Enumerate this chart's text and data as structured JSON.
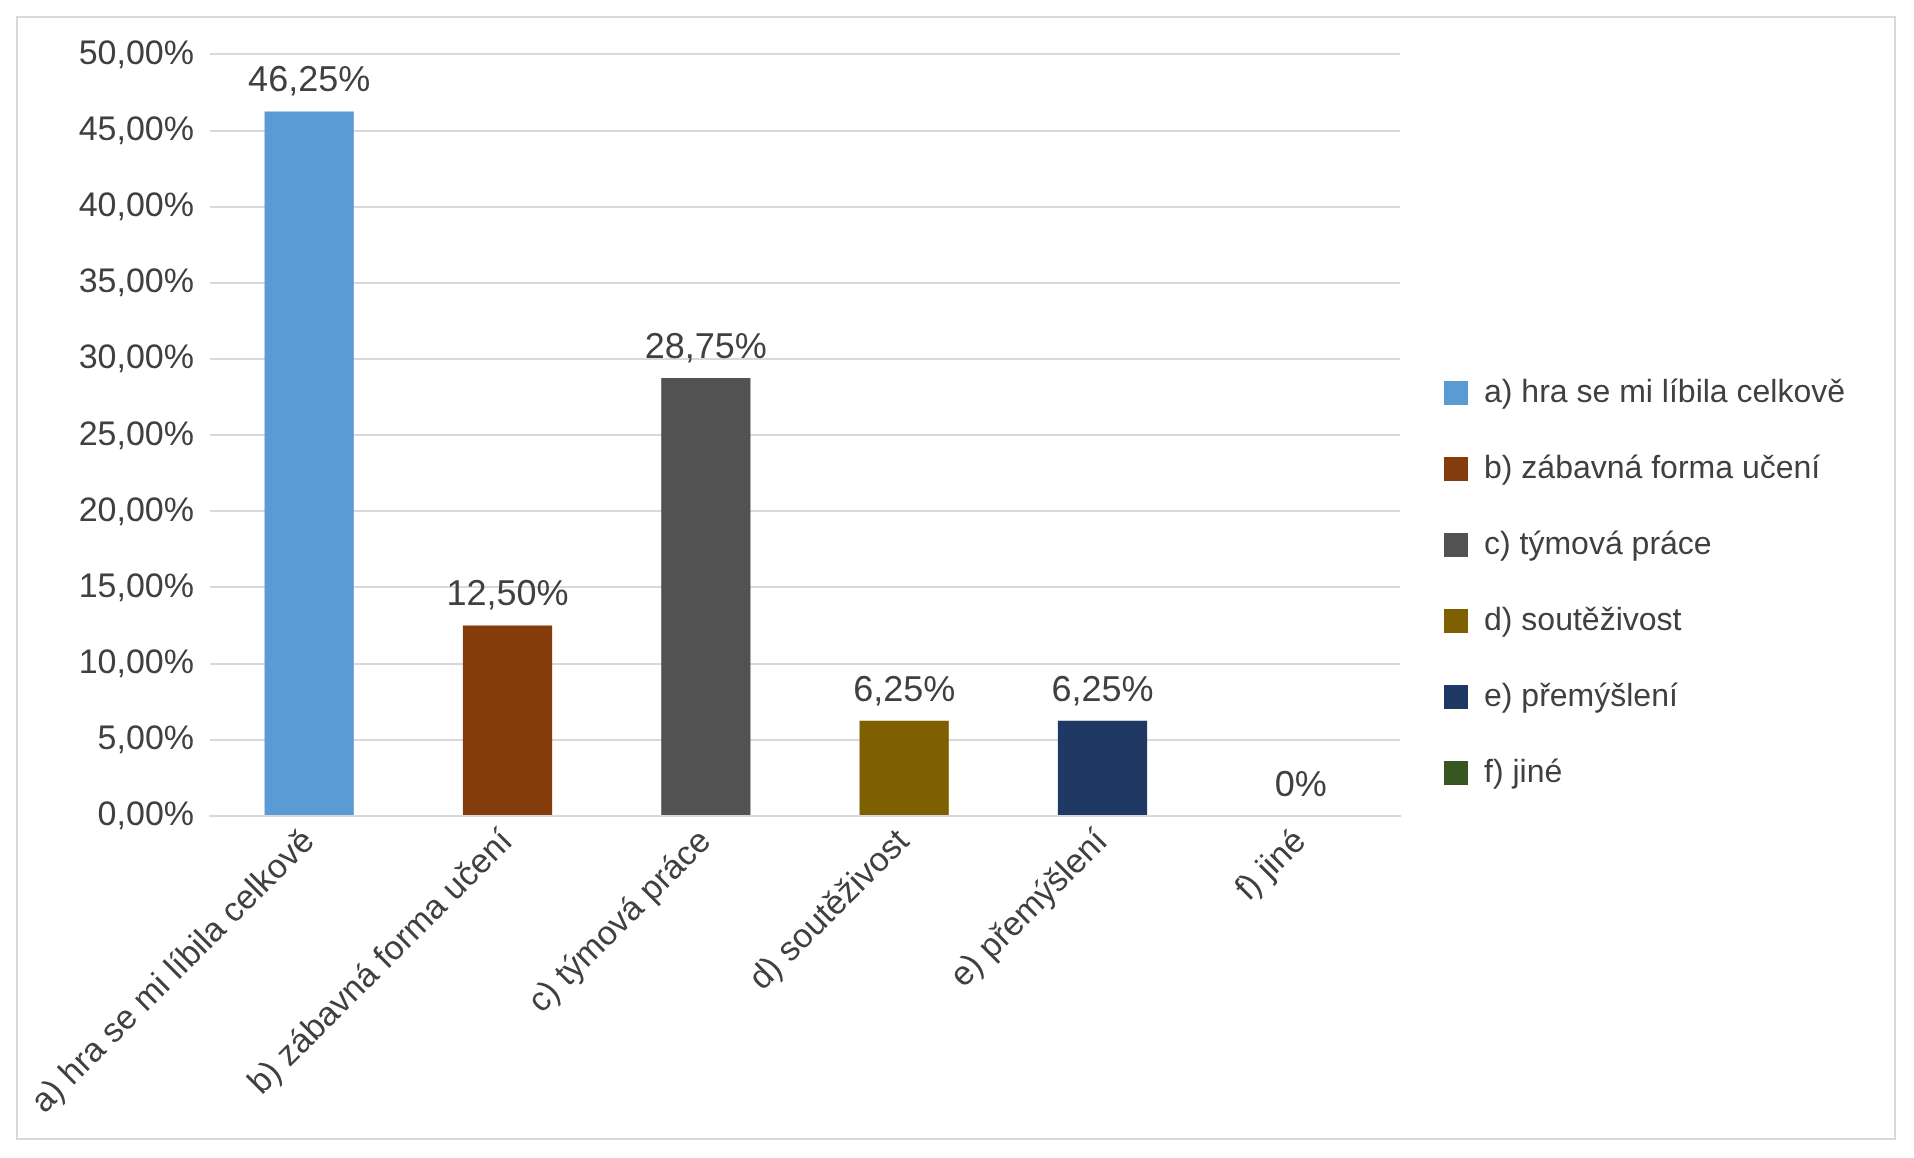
{
  "chart_data": {
    "type": "bar",
    "categories": [
      "a) hra se mi líbila celkově",
      "b) zábavná forma učení",
      "c) týmová práce",
      "d) soutěživost",
      "e) přemýšlení",
      "f) jiné"
    ],
    "series": [
      {
        "name": "a) hra se mi líbila celkově",
        "color": "#5b9bd5",
        "values": [
          46.25,
          null,
          null,
          null,
          null,
          null
        ],
        "value_labels": [
          "46,25%",
          null,
          null,
          null,
          null,
          null
        ]
      },
      {
        "name": "b) zábavná forma učení",
        "color": "#843c0c",
        "values": [
          null,
          12.5,
          null,
          null,
          null,
          null
        ],
        "value_labels": [
          null,
          "12,50%",
          null,
          null,
          null,
          null
        ]
      },
      {
        "name": "c) týmová práce",
        "color": "#525252",
        "values": [
          null,
          null,
          28.75,
          null,
          null,
          null
        ],
        "value_labels": [
          null,
          null,
          "28,75%",
          null,
          null,
          null
        ]
      },
      {
        "name": "d) soutěživost",
        "color": "#7f6000",
        "values": [
          null,
          null,
          null,
          6.25,
          null,
          null
        ],
        "value_labels": [
          null,
          null,
          null,
          "6,25%",
          null,
          null
        ]
      },
      {
        "name": "e) přemýšlení",
        "color": "#203864",
        "values": [
          null,
          null,
          null,
          null,
          6.25,
          null
        ],
        "value_labels": [
          null,
          null,
          null,
          null,
          "6,25%",
          null
        ]
      },
      {
        "name": "f) jiné",
        "color": "#375623",
        "values": [
          null,
          null,
          null,
          null,
          null,
          0
        ],
        "value_labels": [
          null,
          null,
          null,
          null,
          null,
          "0%"
        ]
      }
    ],
    "ylim": [
      0,
      50
    ],
    "yticks": [
      {
        "value": 0,
        "label": "0,00%"
      },
      {
        "value": 5,
        "label": "5,00%"
      },
      {
        "value": 10,
        "label": "10,00%"
      },
      {
        "value": 15,
        "label": "15,00%"
      },
      {
        "value": 20,
        "label": "20,00%"
      },
      {
        "value": 25,
        "label": "25,00%"
      },
      {
        "value": 30,
        "label": "30,00%"
      },
      {
        "value": 35,
        "label": "35,00%"
      },
      {
        "value": 40,
        "label": "40,00%"
      },
      {
        "value": 45,
        "label": "45,00%"
      },
      {
        "value": 50,
        "label": "50,00%"
      }
    ],
    "grid": "y",
    "legend": "right"
  }
}
